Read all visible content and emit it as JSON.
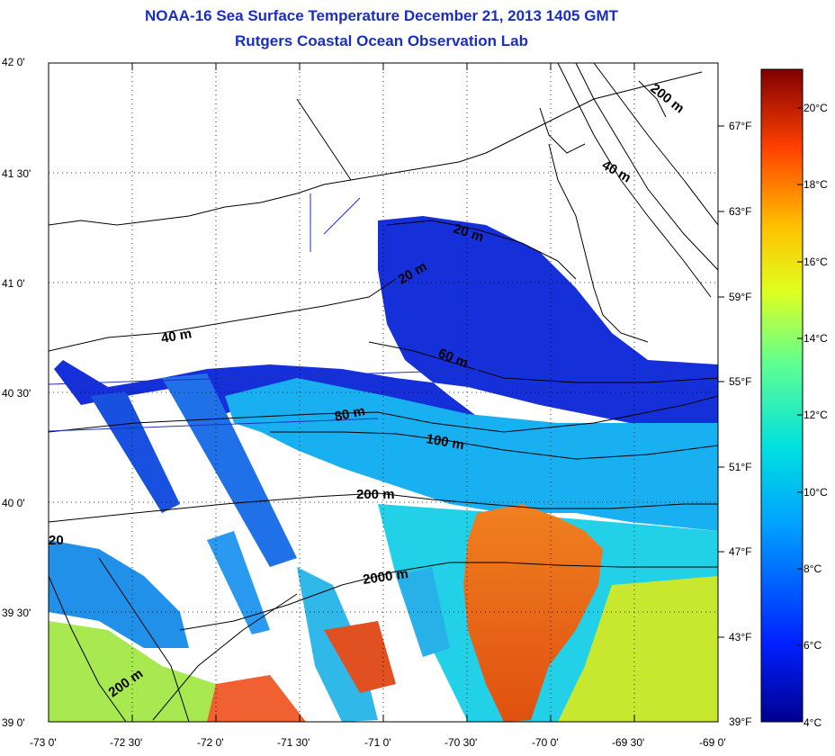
{
  "title": "NOAA-16 Sea Surface Temperature December 21, 2013 1405 GMT",
  "subtitle": "Rutgers Coastal Ocean Observation Lab",
  "axes": {
    "lat_labels": [
      "42 0'",
      "41 30'",
      "41 0'",
      "40 30'",
      "40 0'",
      "39 30'",
      "39 0'"
    ],
    "lon_labels": [
      "-73 0'",
      "-72 30'",
      "-72 0'",
      "-71 30'",
      "-71 0'",
      "-70 30'",
      "-70 0'",
      "-69 30'",
      "-69 0'"
    ],
    "fahrenheit_labels": [
      "67°F",
      "63°F",
      "59°F",
      "55°F",
      "51°F",
      "47°F",
      "43°F",
      "39°F"
    ]
  },
  "colorbar": {
    "labels": [
      "20°C",
      "18°C",
      "16°C",
      "14°C",
      "12°C",
      "10°C",
      "8°C",
      "6°C",
      "4°C"
    ],
    "range_c": [
      4,
      21
    ],
    "colors": [
      "#00008f",
      "#0040ff",
      "#00bfff",
      "#40ffbf",
      "#bfff40",
      "#ffbf00",
      "#ff4000",
      "#8f0000"
    ]
  },
  "contour_labels": [
    "200 m",
    "40 m",
    "20 m",
    "20 m",
    "40 m",
    "60 m",
    "80 m",
    "100 m",
    "200 m",
    "2000 m",
    "200 m",
    "20"
  ]
}
